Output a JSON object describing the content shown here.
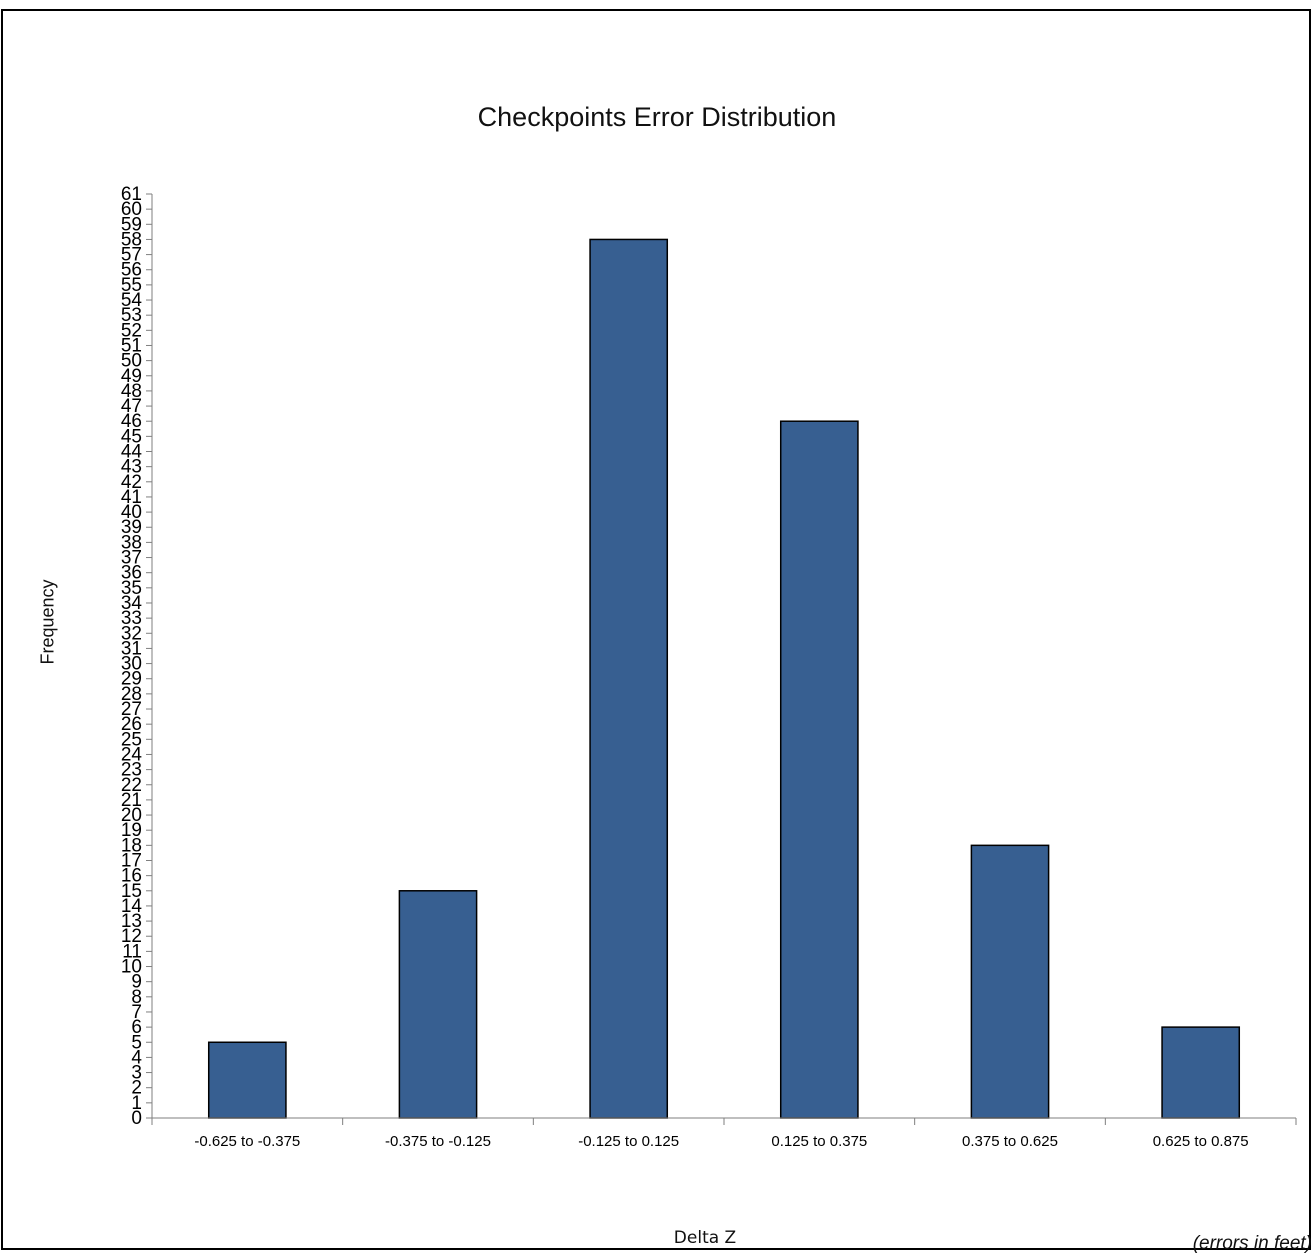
{
  "chart_data": {
    "type": "bar",
    "title": "Checkpoints Error Distribution",
    "xlabel": "Delta Z",
    "ylabel": "Frequency",
    "note": "(errors in feet)",
    "categories": [
      "-0.625 to -0.375",
      "-0.375 to -0.125",
      "-0.125 to 0.125",
      "0.125 to 0.375",
      "0.375 to 0.625",
      "0.625 to 0.875"
    ],
    "values": [
      5,
      15,
      58,
      46,
      18,
      6
    ],
    "ylim": [
      0,
      61
    ],
    "ytick_step": 1,
    "grid": false,
    "legend": "none",
    "bar_color": "#375f91"
  }
}
